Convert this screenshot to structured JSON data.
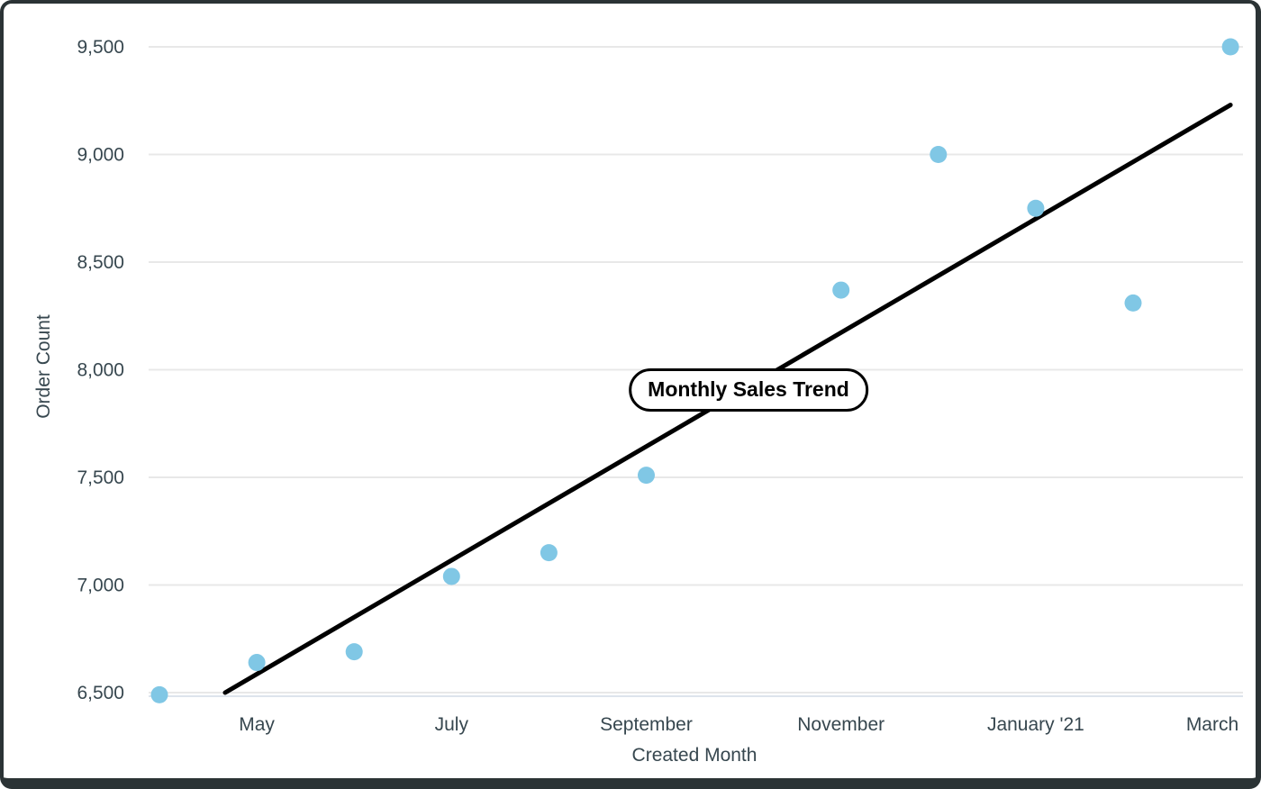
{
  "frame": {
    "border_color": "#2b3335",
    "background": "#ffffff"
  },
  "chart_data": {
    "type": "scatter",
    "title": "Monthly Sales Trend",
    "xlabel": "Created Month",
    "ylabel": "Order Count",
    "ylim": [
      6500,
      9500
    ],
    "grid": true,
    "legend_position": "none",
    "y_ticks": [
      {
        "value": 6500,
        "label": "6,500"
      },
      {
        "value": 7000,
        "label": "7,000"
      },
      {
        "value": 7500,
        "label": "7,500"
      },
      {
        "value": 8000,
        "label": "8,000"
      },
      {
        "value": 8500,
        "label": "8,500"
      },
      {
        "value": 9000,
        "label": "9,000"
      },
      {
        "value": 9500,
        "label": "9,500"
      }
    ],
    "x_ticks": [
      {
        "index": 1,
        "label": "May"
      },
      {
        "index": 3,
        "label": "July"
      },
      {
        "index": 5,
        "label": "September"
      },
      {
        "index": 7,
        "label": "November"
      },
      {
        "index": 9,
        "label": "January '21"
      },
      {
        "index": 11,
        "label": "March"
      }
    ],
    "points": [
      {
        "month": "April '20",
        "index": 0,
        "value": 6490
      },
      {
        "month": "May",
        "index": 1,
        "value": 6640
      },
      {
        "month": "June",
        "index": 2,
        "value": 6690
      },
      {
        "month": "July",
        "index": 3,
        "value": 7040
      },
      {
        "month": "August",
        "index": 4,
        "value": 7150
      },
      {
        "month": "September",
        "index": 5,
        "value": 7510
      },
      {
        "month": "November",
        "index": 7,
        "value": 8370
      },
      {
        "month": "December",
        "index": 8,
        "value": 9000
      },
      {
        "month": "January '21",
        "index": 9,
        "value": 8750
      },
      {
        "month": "February",
        "index": 10,
        "value": 8310
      },
      {
        "month": "March",
        "index": 11,
        "value": 9500
      }
    ],
    "trendline": {
      "start_index": 0.675,
      "start_value": 6500,
      "end_index": 11,
      "end_value": 9230
    },
    "colors": {
      "point": "#80C7E5",
      "trendline": "#000000",
      "gridline": "#E8E8E8",
      "baseline": "#DDE4EC",
      "axis_text": "#37474F",
      "title_text": "#000000",
      "title_border": "#000000",
      "title_bg": "#FFFFFF"
    }
  }
}
